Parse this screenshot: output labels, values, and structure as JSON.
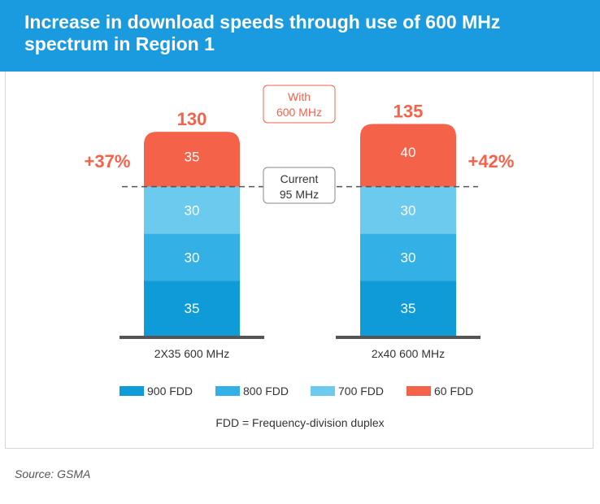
{
  "header": {
    "title": "Increase in download speeds through use of 600 MHz spectrum in Region 1"
  },
  "chart_data": {
    "type": "bar",
    "stacked": true,
    "categories": [
      "2X35 600 MHz",
      "2x40 600 MHz"
    ],
    "series": [
      {
        "name": "900 FDD",
        "values": [
          35,
          35
        ],
        "color": "#0f9ad8"
      },
      {
        "name": "800 FDD",
        "values": [
          30,
          30
        ],
        "color": "#33b1e6"
      },
      {
        "name": "700 FDD",
        "values": [
          30,
          30
        ],
        "color": "#6ccaef"
      },
      {
        "name": "60 FDD",
        "values": [
          35,
          40
        ],
        "color": "#f5624a"
      }
    ],
    "totals": [
      "130",
      "135"
    ],
    "increase_labels": [
      "+37%",
      "+42%"
    ],
    "ylim": [
      0,
      140
    ],
    "annotations": {
      "with_label": [
        "With",
        "600 MHz"
      ],
      "current_label": [
        "Current",
        "95 MHz"
      ]
    },
    "colors": {
      "accent": "#f5624a",
      "header": "#1a9be0",
      "text": "#333333"
    }
  },
  "footnote": "FDD = Frequency-division duplex",
  "source": "Source: GSMA"
}
